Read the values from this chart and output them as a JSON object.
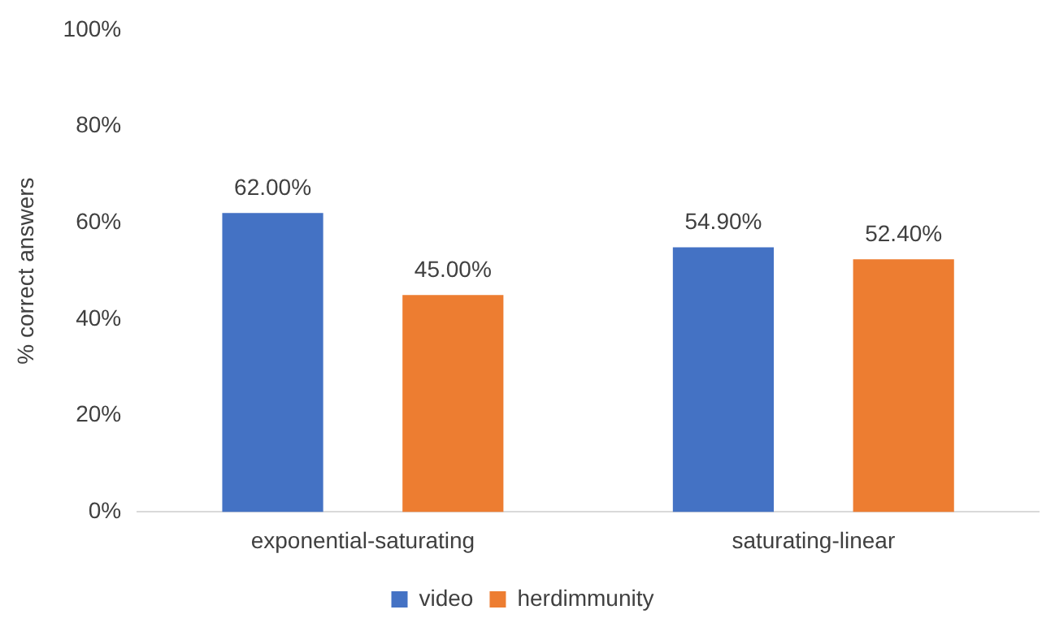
{
  "chart_data": {
    "type": "bar",
    "ylabel": "% correct answers",
    "categories": [
      "exponential-saturating",
      "saturating-linear"
    ],
    "series": [
      {
        "name": "video",
        "color": "#4472c4",
        "values": [
          62,
          54.9
        ],
        "value_labels": [
          "62.00%",
          "54.90%"
        ]
      },
      {
        "name": "herdimmunity",
        "color": "#ed7d31",
        "values": [
          45,
          52.4
        ],
        "value_labels": [
          "45.00%",
          "52.40%"
        ]
      }
    ],
    "ylim": [
      0,
      100
    ],
    "yticks": [
      {
        "value": 0,
        "label": "0%"
      },
      {
        "value": 20,
        "label": "20%"
      },
      {
        "value": 40,
        "label": "40%"
      },
      {
        "value": 60,
        "label": "60%"
      },
      {
        "value": 80,
        "label": "80%"
      },
      {
        "value": 100,
        "label": "100%"
      }
    ],
    "grid": false,
    "legend": "bottom"
  }
}
